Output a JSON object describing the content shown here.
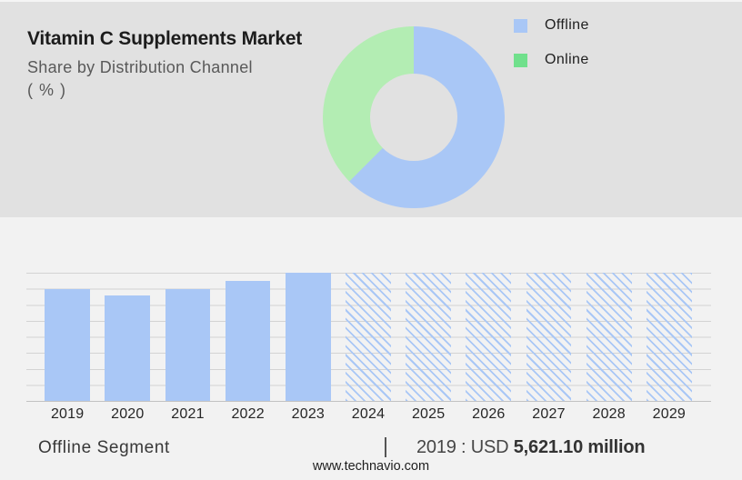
{
  "header": {
    "title": "Vitamin C Supplements Market",
    "subtitle": "Share by Distribution Channel",
    "unit": "( % )"
  },
  "legend": {
    "items": [
      {
        "label": "Offline",
        "color": "#a9c7f6"
      },
      {
        "label": "Online",
        "color": "#70e08c"
      }
    ]
  },
  "chart_data": [
    {
      "type": "pie",
      "donut": true,
      "title": "Share by Distribution Channel ( % )",
      "labels": [
        "Offline",
        "Online"
      ],
      "values_percent_estimated": [
        62.5,
        37.5
      ],
      "colors": [
        "#a9c7f6",
        "#b3edb3"
      ],
      "legend_position": "right",
      "start_angle_deg": 0,
      "direction": "clockwise"
    },
    {
      "type": "bar",
      "title": "Offline Segment",
      "categories": [
        "2019",
        "2020",
        "2021",
        "2022",
        "2023",
        "2024",
        "2025",
        "2026",
        "2027",
        "2028",
        "2029"
      ],
      "values_relative_height": [
        0.872,
        0.823,
        0.872,
        0.936,
        1.0,
        1.0,
        1.0,
        1.0,
        1.0,
        1.0,
        1.0
      ],
      "forecast_categories": [
        "2024",
        "2025",
        "2026",
        "2027",
        "2028",
        "2029"
      ],
      "forecast_style": "diagonal-hatch",
      "bar_color": "#a9c7f6",
      "known_value": {
        "year": "2019",
        "value": "USD 5,621.10 million"
      },
      "grid": true,
      "gridline_count": 9,
      "xlabel": "",
      "ylabel": ""
    }
  ],
  "footer": {
    "segment_label": "Offline Segment",
    "separator": "|",
    "value_prefix": "2019 : USD",
    "value_bold": "5,621.10 million",
    "website": "www.technavio.com"
  }
}
